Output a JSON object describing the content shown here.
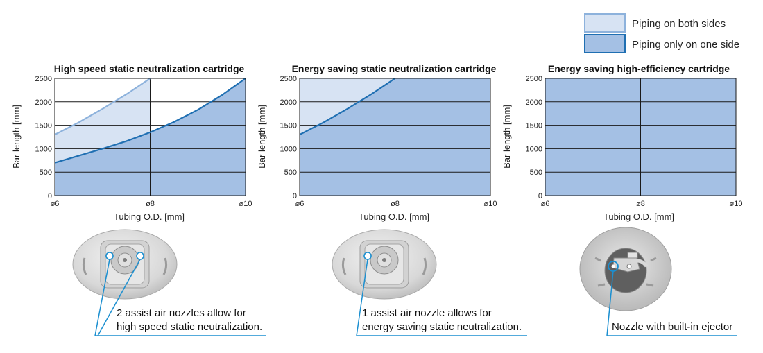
{
  "legend": {
    "both_sides": "Piping on both sides",
    "one_side": "Piping only on one side"
  },
  "colors": {
    "both_sides_fill": "#d7e3f3",
    "both_sides_line": "#8db2dc",
    "one_side_fill": "#a4c0e4",
    "one_side_line": "#1f6fb2",
    "callout_line": "#1b8fd0"
  },
  "chart_data": [
    {
      "type": "area",
      "title": "High speed static neutralization cartridge",
      "xlabel": "Tubing O.D. [mm]",
      "ylabel": "Bar length [mm]",
      "x_tick_labels": [
        "ø6",
        "ø8",
        "ø10"
      ],
      "x_ticks": [
        6,
        8,
        10
      ],
      "y_ticks": [
        0,
        500,
        1000,
        1500,
        2000,
        2500
      ],
      "xlim": [
        6,
        10
      ],
      "ylim": [
        0,
        2500
      ],
      "grid": true,
      "series": [
        {
          "name": "Piping on both sides",
          "x": [
            6,
            6.5,
            7,
            7.5,
            8
          ],
          "y": [
            1300,
            1560,
            1850,
            2160,
            2500
          ]
        },
        {
          "name": "Piping only on one side",
          "x": [
            6,
            6.5,
            7,
            7.5,
            8,
            8.5,
            9,
            9.5,
            10
          ],
          "y": [
            700,
            850,
            1000,
            1160,
            1350,
            1570,
            1830,
            2140,
            2500
          ]
        }
      ],
      "callout": [
        "2 assist air nozzles allow for",
        "high speed static neutralization."
      ]
    },
    {
      "type": "area",
      "title": "Energy saving static neutralization cartridge",
      "xlabel": "Tubing O.D. [mm]",
      "ylabel": "Bar length [mm]",
      "x_tick_labels": [
        "ø6",
        "ø8",
        "ø10"
      ],
      "x_ticks": [
        6,
        8,
        10
      ],
      "y_ticks": [
        0,
        500,
        1000,
        1500,
        2000,
        2500
      ],
      "xlim": [
        6,
        10
      ],
      "ylim": [
        0,
        2500
      ],
      "grid": true,
      "series": [
        {
          "name": "Piping on both sides",
          "x": [
            6,
            8
          ],
          "y": [
            2500,
            2500
          ]
        },
        {
          "name": "Piping only on one side",
          "x": [
            6,
            6.5,
            7,
            7.5,
            8,
            10
          ],
          "y": [
            1300,
            1560,
            1850,
            2160,
            2500,
            2500
          ]
        }
      ],
      "callout": [
        "1 assist air nozzle allows for",
        "energy saving static neutralization."
      ]
    },
    {
      "type": "area",
      "title": "Energy saving high-efficiency cartridge",
      "xlabel": "Tubing O.D. [mm]",
      "ylabel": "Bar length [mm]",
      "x_tick_labels": [
        "ø6",
        "ø8",
        "ø10"
      ],
      "x_ticks": [
        6,
        8,
        10
      ],
      "y_ticks": [
        0,
        500,
        1000,
        1500,
        2000,
        2500
      ],
      "xlim": [
        6,
        10
      ],
      "ylim": [
        0,
        2500
      ],
      "grid": true,
      "series": [
        {
          "name": "Piping only on one side",
          "x": [
            6,
            10
          ],
          "y": [
            2500,
            2500
          ]
        }
      ],
      "callout": [
        "Nozzle with built-in ejector"
      ]
    }
  ]
}
